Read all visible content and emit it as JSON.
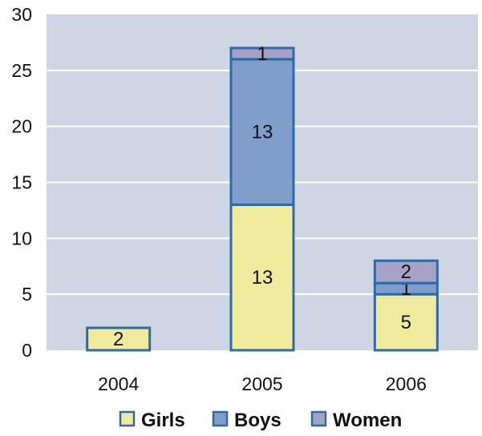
{
  "chart_data": {
    "type": "bar",
    "stacked": true,
    "categories": [
      "2004",
      "2005",
      "2006"
    ],
    "series": [
      {
        "name": "Girls",
        "values": [
          2,
          13,
          5
        ],
        "color": "#f0eb9c"
      },
      {
        "name": "Boys",
        "values": [
          0,
          13,
          1
        ],
        "color": "#7f9fca"
      },
      {
        "name": "Women",
        "values": [
          0,
          1,
          2
        ],
        "color": "#a7a1c6"
      }
    ],
    "data_labels": [
      [
        "2",
        "13",
        "5"
      ],
      [
        "",
        "13",
        "1"
      ],
      [
        "",
        "1",
        "2"
      ]
    ],
    "ylim": [
      0,
      30
    ],
    "yticks": [
      "0",
      "5",
      "10",
      "15",
      "20",
      "25",
      "30"
    ],
    "grid": true,
    "legend": "bottom",
    "colors": {
      "plot_bg": "#cdd6e2",
      "grid": "#ffffff",
      "bar_border": "#2d6aa6"
    }
  }
}
